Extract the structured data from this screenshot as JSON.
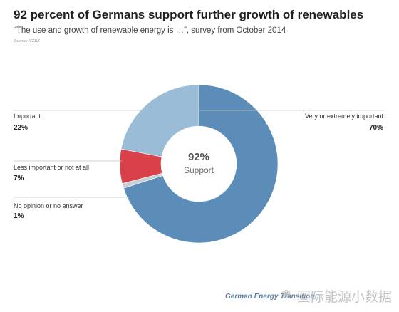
{
  "header": {
    "title": "92 percent of Germans support further growth of renewables",
    "subtitle": "“The use and growth of renewable energy is …”, survey from October 2014",
    "source": "Source: VZBZ"
  },
  "chart_data": {
    "type": "pie",
    "variant": "donut",
    "title": "92 percent of Germans support further growth of renewables",
    "subtitle": "“The use and growth of renewable energy is …”, survey from October 2014",
    "center": {
      "value": "92%",
      "label": "Support"
    },
    "slices": [
      {
        "label": "Very or extremely important",
        "value": 70,
        "value_label": "70%",
        "color": "#5b8db8"
      },
      {
        "label": "No opinion or no answer",
        "value": 1,
        "value_label": "1%",
        "color": "#c9cfd5"
      },
      {
        "label": "Less important or not at all",
        "value": 7,
        "value_label": "7%",
        "color": "#d8404a"
      },
      {
        "label": "Important",
        "value": 22,
        "value_label": "22%",
        "color": "#9bbcd7"
      }
    ]
  },
  "footer": {
    "brand": "German Energy Transition",
    "watermark": "国际能源小数据"
  }
}
